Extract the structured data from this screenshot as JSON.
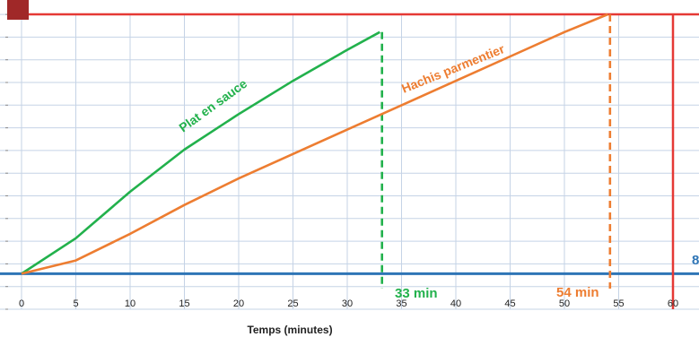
{
  "chart_data": {
    "type": "line",
    "xlabel": "Temps (minutes)",
    "ylabel": "",
    "title": "",
    "xlim": [
      0,
      64
    ],
    "ylim": [
      0,
      13
    ],
    "x_ticks": [
      0,
      5,
      10,
      15,
      20,
      25,
      30,
      35,
      40,
      45,
      50,
      55,
      60
    ],
    "grid": true,
    "series": [
      {
        "name": "Plat en sauce",
        "color": "#22b14c",
        "points": [
          [
            0,
            1.6
          ],
          [
            5,
            3.2
          ],
          [
            10,
            5.3
          ],
          [
            15,
            7.2
          ],
          [
            20,
            8.8
          ],
          [
            25,
            10.3
          ],
          [
            30,
            11.7
          ],
          [
            33,
            12.5
          ]
        ]
      },
      {
        "name": "Hachis parmentier",
        "color": "#ed7d31",
        "points": [
          [
            0,
            1.6
          ],
          [
            5,
            2.2
          ],
          [
            10,
            3.4
          ],
          [
            15,
            4.7
          ],
          [
            20,
            5.9
          ],
          [
            25,
            7.0
          ],
          [
            30,
            8.1
          ],
          [
            35,
            9.2
          ],
          [
            40,
            10.3
          ],
          [
            45,
            11.4
          ],
          [
            50,
            12.5
          ],
          [
            54,
            13.3
          ]
        ]
      }
    ],
    "reference_lines": {
      "horizontal_blue": {
        "y": 1.6,
        "color": "#2e75b6"
      },
      "horizontal_red": {
        "y": 13.3,
        "color": "#e53935"
      },
      "vertical_red": {
        "x": 60,
        "color": "#e53935"
      }
    },
    "annotations": [
      {
        "text": "33 min",
        "x": 33.2,
        "color": "#22b14c"
      },
      {
        "text": "54 min",
        "x": 54.2,
        "color": "#ed7d31"
      },
      {
        "text": "8",
        "color": "#2e75b6"
      }
    ]
  }
}
